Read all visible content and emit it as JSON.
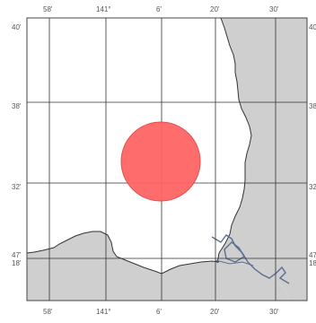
{
  "map": {
    "colors": {
      "land": "#cfcfcf",
      "sea": "#ffffff",
      "coastline": "#333333",
      "grid": "#333333",
      "frame": "#444444",
      "marker_fill": "#ff6464",
      "marker_stroke": "#e45050",
      "road": "#5a6f8e"
    },
    "top_labels": [
      "58'",
      "141°",
      "6'",
      "20'",
      "30'"
    ],
    "bottom_labels": [
      "58'",
      "141°",
      "6'",
      "20'",
      "30'"
    ],
    "left_labels": [
      "40'",
      "38'",
      "32'",
      "47'",
      "18'"
    ],
    "right_labels": [
      "40'",
      "38'",
      "32'",
      "47'",
      "18'"
    ],
    "marker": {
      "type": "circle"
    }
  }
}
